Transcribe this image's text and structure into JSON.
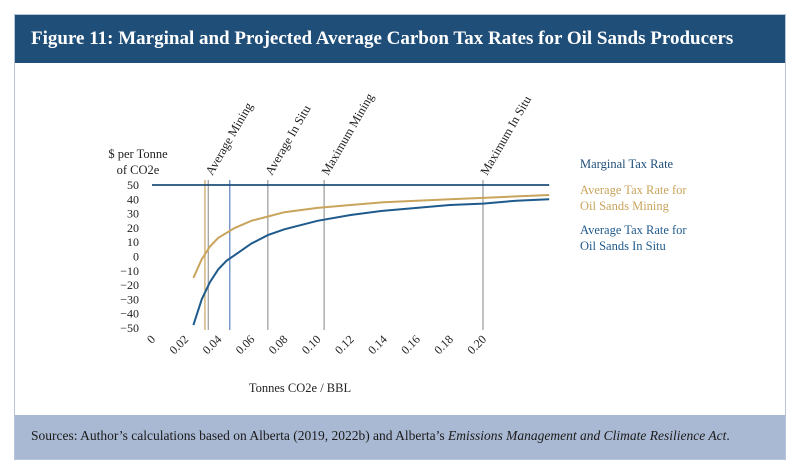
{
  "figure": {
    "title": "Figure 11: Marginal and Projected Average Carbon Tax Rates for Oil Sands Producers",
    "source_prefix": "Sources: Author’s calculations based on Alberta (2019, 2022b) and Alberta’s ",
    "source_italic": "Emissions Management and Climate Resilience Act",
    "source_suffix": "."
  },
  "colors": {
    "marginal": "#1f4e79",
    "mining": "#c9a45c",
    "insitu": "#1f5a8c",
    "vline_gray": "#9a9a9a",
    "vline_blue": "#5b7fbf"
  },
  "chart_data": {
    "type": "line",
    "title": "Figure 11: Marginal and Projected Average Carbon Tax Rates for Oil Sands Producers",
    "xlabel": "Tonnes CO2e / BBL",
    "ylabel": "$ per Tonne of CO2e",
    "ylabel_lines": [
      "$ per Tonne",
      "of CO2e"
    ],
    "xlim": [
      0,
      0.24
    ],
    "ylim": [
      -50,
      50
    ],
    "x_tick_labels": [
      "0",
      "0.02",
      "0.04",
      "0.06",
      "0.08",
      "0.10",
      "0.12",
      "0.14",
      "0.16",
      "0.18",
      "0.20"
    ],
    "y_tick_labels": [
      "50",
      "40",
      "30",
      "20",
      "10",
      "0",
      "−10",
      "−20",
      "−30",
      "−40",
      "−50"
    ],
    "grid": false,
    "legend_position": "right",
    "series": [
      {
        "name": "Marginal Tax Rate",
        "label_lines": [
          "Marginal Tax Rate"
        ],
        "color": "#1f4e79",
        "x": [
          0,
          0.24
        ],
        "y": [
          50,
          50
        ]
      },
      {
        "name": "Average Tax Rate for Oil Sands Mining",
        "label_lines": [
          "Average Tax Rate for",
          "Oil Sands Mining"
        ],
        "color": "#c9a45c",
        "x": [
          0.025,
          0.03,
          0.035,
          0.04,
          0.05,
          0.06,
          0.07,
          0.08,
          0.1,
          0.12,
          0.14,
          0.16,
          0.18,
          0.2,
          0.22,
          0.24
        ],
        "y": [
          -15,
          -2,
          7,
          13,
          20,
          25,
          28,
          31,
          34,
          36,
          38,
          39,
          40,
          41,
          42,
          43
        ]
      },
      {
        "name": "Average Tax Rate for Oil Sands In Situ",
        "label_lines": [
          "Average Tax Rate for",
          "Oil Sands In Situ"
        ],
        "color": "#1f5a8c",
        "x": [
          0.025,
          0.03,
          0.035,
          0.04,
          0.045,
          0.05,
          0.06,
          0.07,
          0.08,
          0.1,
          0.12,
          0.14,
          0.16,
          0.18,
          0.2,
          0.22,
          0.24
        ],
        "y": [
          -48,
          -30,
          -18,
          -9,
          -3,
          1,
          9,
          15,
          19,
          25,
          29,
          32,
          34,
          36,
          37,
          39,
          40
        ]
      }
    ],
    "vertical_markers": [
      {
        "label": "Average Mining",
        "x": 0.032,
        "color": "#c9a45c"
      },
      {
        "label": "Average Mining",
        "x": 0.034,
        "color": "#9a9a9a"
      },
      {
        "label": "Average In Situ",
        "x": 0.047,
        "color": "#5b7fbf"
      },
      {
        "label": "Average In Situ",
        "x": 0.07,
        "color": "#9a9a9a"
      },
      {
        "label": "Maximum Mining",
        "x": 0.104,
        "color": "#9a9a9a"
      },
      {
        "label": "Maximum In Situ",
        "x": 0.2,
        "color": "#9a9a9a"
      }
    ]
  }
}
